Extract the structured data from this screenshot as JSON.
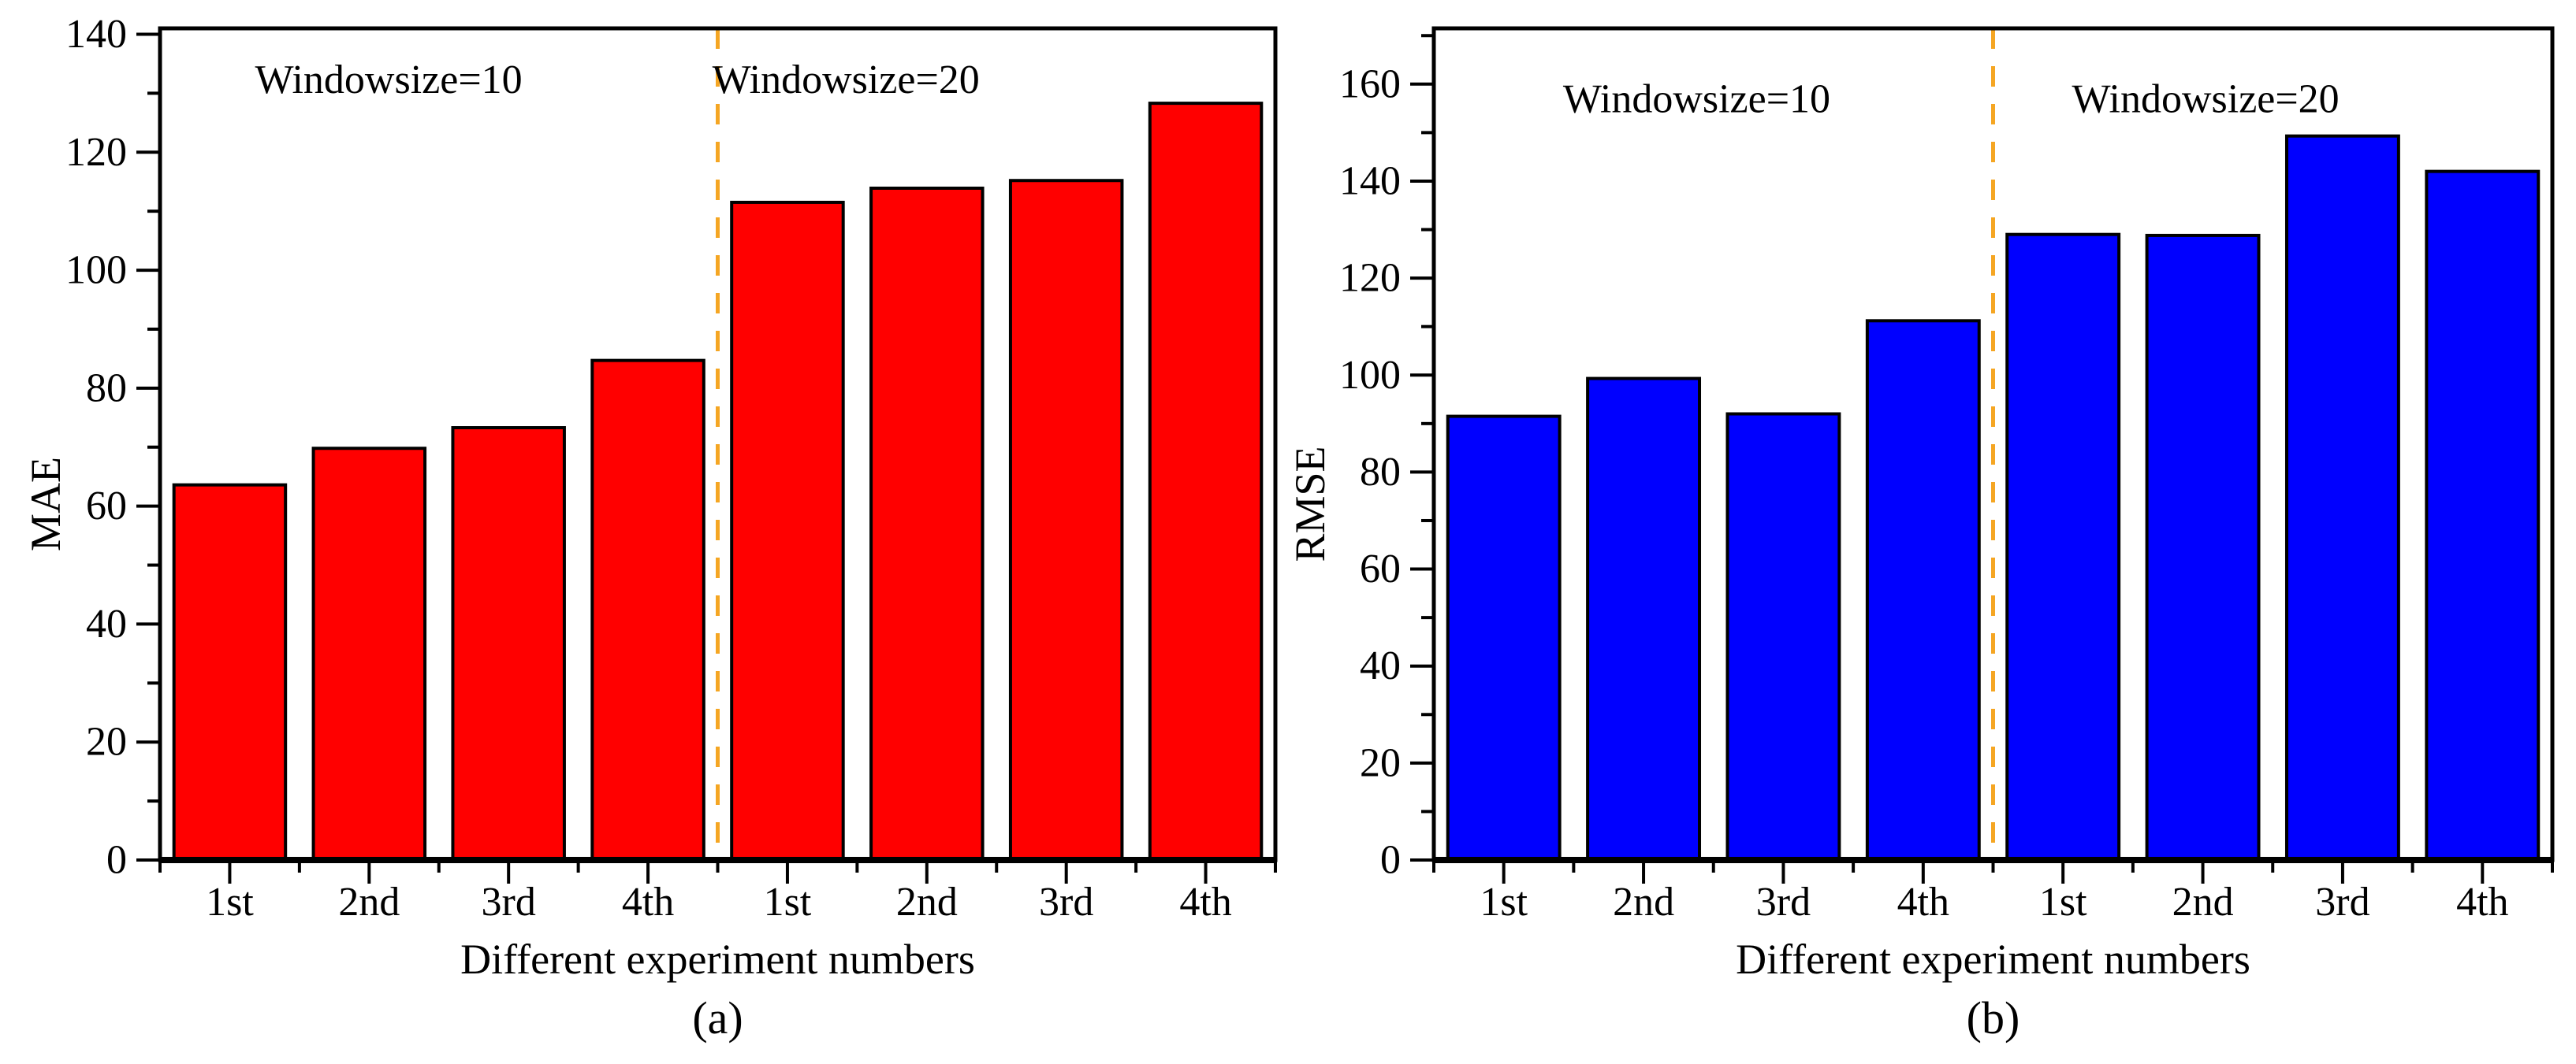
{
  "figure": {
    "background": "#ffffff",
    "description": "Two-panel bar figure comparing error metrics for different experiment numbers under two window sizes"
  },
  "chart_data": [
    {
      "id": "panel-a",
      "type": "bar",
      "panel_label": "(a)",
      "xlabel": "Different experiment numbers",
      "ylabel": "MAE",
      "categories": [
        "1st",
        "2nd",
        "3rd",
        "4th",
        "1st",
        "2nd",
        "3rd",
        "4th"
      ],
      "values": [
        63.6,
        69.8,
        73.3,
        84.7,
        111.5,
        113.9,
        115.2,
        128.3
      ],
      "bar_color": "#ff0000",
      "bar_edge_color": "#000000",
      "ylim": [
        0,
        141
      ],
      "yticks": [
        0,
        20,
        40,
        60,
        80,
        100,
        120,
        140
      ],
      "minor_tick_step": 10,
      "grid": false,
      "divider": {
        "after_category_index": 3,
        "color": "#f5a623",
        "style": "dashed"
      },
      "annotations": [
        {
          "text": "Windowsize=10",
          "fx": 0.205,
          "fy": 0.062
        },
        {
          "text": "Windowsize=20",
          "fx": 0.615,
          "fy": 0.062
        }
      ]
    },
    {
      "id": "panel-b",
      "type": "bar",
      "panel_label": "(b)",
      "xlabel": "Different experiment numbers",
      "ylabel": "RMSE",
      "categories": [
        "1st",
        "2nd",
        "3rd",
        "4th",
        "1st",
        "2nd",
        "3rd",
        "4th"
      ],
      "values": [
        91.5,
        99.3,
        92.0,
        111.2,
        129.0,
        128.8,
        149.3,
        142.0
      ],
      "bar_color": "#0000ff",
      "bar_edge_color": "#000000",
      "ylim": [
        0,
        171.5
      ],
      "yticks": [
        0,
        20,
        40,
        60,
        80,
        100,
        120,
        140,
        160
      ],
      "minor_tick_step": 10,
      "grid": false,
      "divider": {
        "after_category_index": 3,
        "color": "#f5a623",
        "style": "dashed"
      },
      "annotations": [
        {
          "text": "Windowsize=10",
          "fx": 0.235,
          "fy": 0.085
        },
        {
          "text": "Windowsize=20",
          "fx": 0.69,
          "fy": 0.085
        }
      ]
    }
  ]
}
